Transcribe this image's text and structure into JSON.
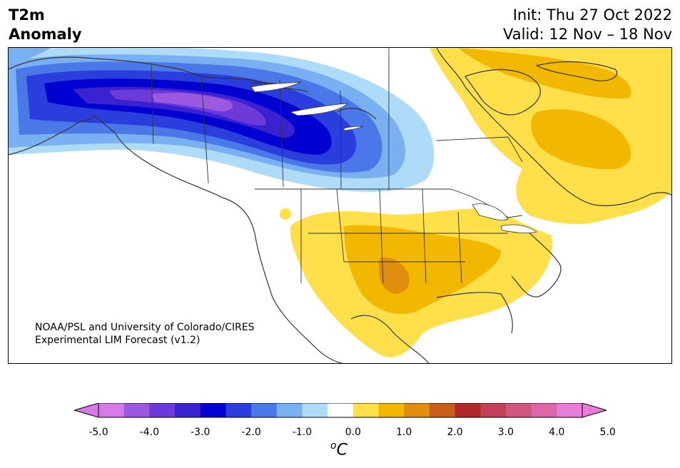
{
  "header": {
    "title_line1": "T2m",
    "title_line2": "Anomaly",
    "init": "Init: Thu 27 Oct 2022",
    "valid": "Valid: 12 Nov – 18 Nov"
  },
  "credit": {
    "line1": "NOAA/PSL and University of Colorado/CIRES",
    "line2": "Experimental LIM Forecast (v1.2)"
  },
  "colorbar": {
    "levels": [
      -5.0,
      -4.5,
      -4.0,
      -3.5,
      -3.0,
      -2.5,
      -2.0,
      -1.5,
      -1.0,
      -0.5,
      0.5,
      1.0,
      1.5,
      2.0,
      2.5,
      3.0,
      3.5,
      4.0,
      4.5,
      5.0
    ],
    "colors": [
      "#d67ae8",
      "#9b59e0",
      "#6b3ad8",
      "#3a22d0",
      "#0000d0",
      "#2a3ede",
      "#4a78e8",
      "#78b0f2",
      "#aedcf8",
      "#ffffff",
      "#ffe04a",
      "#f2b800",
      "#e08e10",
      "#c85e1a",
      "#b02828",
      "#c24058",
      "#d05880",
      "#dc68aa",
      "#e87cd8"
    ],
    "underflow_color": "#d67ae8",
    "overflow_color": "#e87cd8",
    "tick_labels": [
      "-5.0",
      "-4.0",
      "-3.0",
      "-2.0",
      "-1.0",
      "0.0",
      "1.0",
      "2.0",
      "3.0",
      "4.0",
      "5.0"
    ],
    "unit_prefix": "o",
    "unit": "C"
  },
  "map": {
    "region": "North America",
    "variable": "2 m temperature anomaly",
    "cold_anomaly_center": "Alaska / Yukon / NW Canada",
    "cold_anomaly_min": "-4.0 to -4.5",
    "warm_anomaly_regions": [
      "Southern Plains / Texas",
      "Southeast US",
      "Eastern Canada / Quebec",
      "Greenland"
    ],
    "warm_anomaly_max": "1.5 to 2.0"
  }
}
